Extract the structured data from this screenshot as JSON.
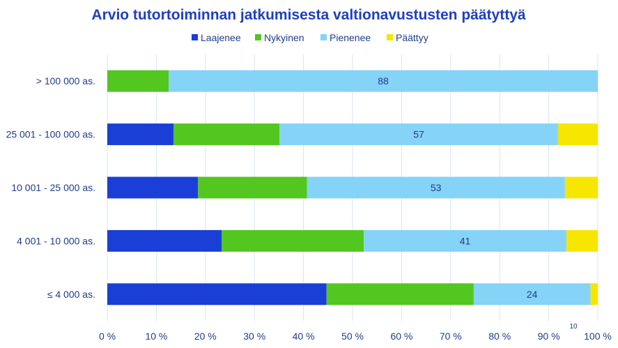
{
  "chart_data": {
    "type": "bar",
    "orientation": "horizontal",
    "stacked": true,
    "percent": true,
    "title": "Arvio tutortoiminnan jatkumisesta valtionavustusten päätyttyä",
    "categories": [
      "> 100 000 as.",
      "25 001 - 100 000 as.",
      "10 001 - 25 000 as.",
      "4 001 - 10 000 as.",
      "≤ 4 000 as."
    ],
    "series": [
      {
        "name": "Laajenee",
        "color": "#1a3fd6",
        "values": [
          0,
          13.5,
          18.5,
          23.3,
          44.7
        ]
      },
      {
        "name": "Nykyinen",
        "color": "#53c61f",
        "values": [
          12.5,
          21.6,
          22.2,
          29.0,
          30.0
        ]
      },
      {
        "name": "Pienenee",
        "color": "#85d3f7",
        "values": [
          87.5,
          56.8,
          52.6,
          41.3,
          23.8
        ],
        "data_labels": [
          "88",
          "57",
          "53",
          "41",
          "24"
        ]
      },
      {
        "name": "Päättyy",
        "color": "#f7e600",
        "values": [
          0,
          8.1,
          6.7,
          6.4,
          1.5
        ]
      }
    ],
    "xlim": [
      0,
      100
    ],
    "x_ticks": [
      "0 %",
      "10 %",
      "20 %",
      "30 %",
      "40 %",
      "50 %",
      "60 %",
      "70 %",
      "80 %",
      "90 %",
      "100 %"
    ],
    "legend_position": "top",
    "grid": true,
    "note": "10"
  }
}
